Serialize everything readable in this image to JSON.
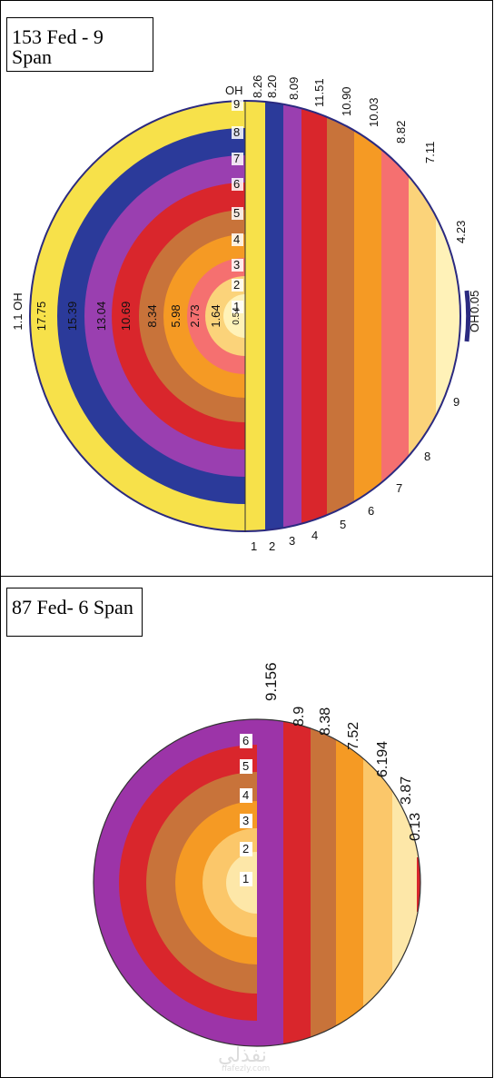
{
  "top": {
    "title": "153 Fed - 9 Span",
    "ring_labels": [
      "9",
      "8",
      "7",
      "6",
      "5",
      "4",
      "3",
      "2",
      "1"
    ],
    "ring_values": [
      "0.54",
      "1.64",
      "2.73",
      "5.98",
      "8.34",
      "10.69",
      "13.04",
      "15.39",
      "17.75"
    ],
    "outer_left_label": "1.1 OH",
    "strip_top_values": [
      "8.26",
      "8.20",
      "8.09",
      "11.51",
      "10.90",
      "10.03",
      "8.82",
      "7.11",
      "4.23",
      "0.05"
    ],
    "oh_top": "OH",
    "oh_right": "OH",
    "strip_bottom_labels": [
      "1",
      "2",
      "3",
      "4",
      "5",
      "6",
      "7",
      "8",
      "9"
    ],
    "colors": [
      "#f7e14a",
      "#2b3a9a",
      "#9a3fb0",
      "#d9262c",
      "#c8733a",
      "#f59a24",
      "#f57070",
      "#fbd37a",
      "#fff2b8"
    ]
  },
  "bottom": {
    "title": "87 Fed- 6 Span",
    "ring_labels": [
      "6",
      "5",
      "4",
      "3",
      "2",
      "1"
    ],
    "strip_top_values": [
      "9.156",
      "8.9",
      "8.38",
      "7.52",
      "6.194",
      "3.87",
      "0.13"
    ],
    "colors": [
      "#9c34a8",
      "#d9262c",
      "#c8733a",
      "#f59a24",
      "#fbc76a",
      "#fde7a8"
    ]
  },
  "watermark": {
    "text": "نفذلي",
    "sub": "nafezly.com"
  }
}
